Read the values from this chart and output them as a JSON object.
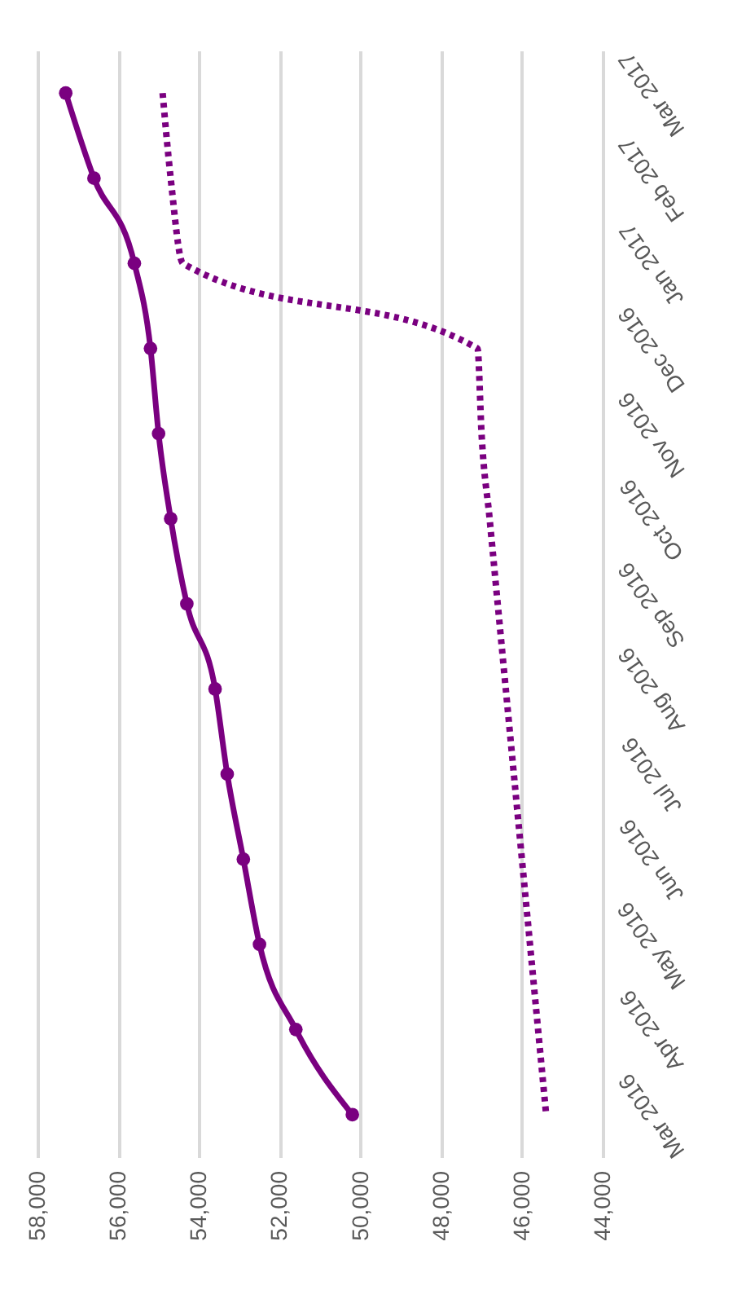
{
  "chart_data": {
    "type": "line",
    "categories": [
      "Mar 2017",
      "Feb 2017",
      "Jan 2017",
      "Dec 2016",
      "Nov 2016",
      "Oct 2016",
      "Sep 2016",
      "Aug 2016",
      "Jul 2016",
      "Jun 2016",
      "May 2016",
      "Apr 2016",
      "Mar 2016"
    ],
    "series": [
      {
        "color": "#7a0080",
        "marker": "circle",
        "line_style": "solid",
        "values": [
          57300,
          56600,
          55600,
          55200,
          55000,
          54700,
          54300,
          53600,
          53300,
          52900,
          52500,
          51600,
          50200
        ]
      },
      {
        "color": "#7a0080",
        "marker": "none",
        "line_style": "dotted",
        "values": [
          54900,
          54700,
          54400,
          47100,
          47000,
          46800,
          46600,
          46400,
          46200,
          46000,
          45800,
          45600,
          45400
        ]
      }
    ],
    "orientation": "horizontal",
    "xlim": [
      58000,
      44000
    ],
    "xticks": [
      {
        "value": 58000,
        "label": "58,000"
      },
      {
        "value": 56000,
        "label": "56,000"
      },
      {
        "value": 54000,
        "label": "54,000"
      },
      {
        "value": 52000,
        "label": "52,000"
      },
      {
        "value": 50000,
        "label": "50,000"
      },
      {
        "value": 48000,
        "label": "48,000"
      },
      {
        "value": 46000,
        "label": "46,000"
      },
      {
        "value": 44000,
        "label": "44,000"
      }
    ],
    "grid": "x"
  }
}
